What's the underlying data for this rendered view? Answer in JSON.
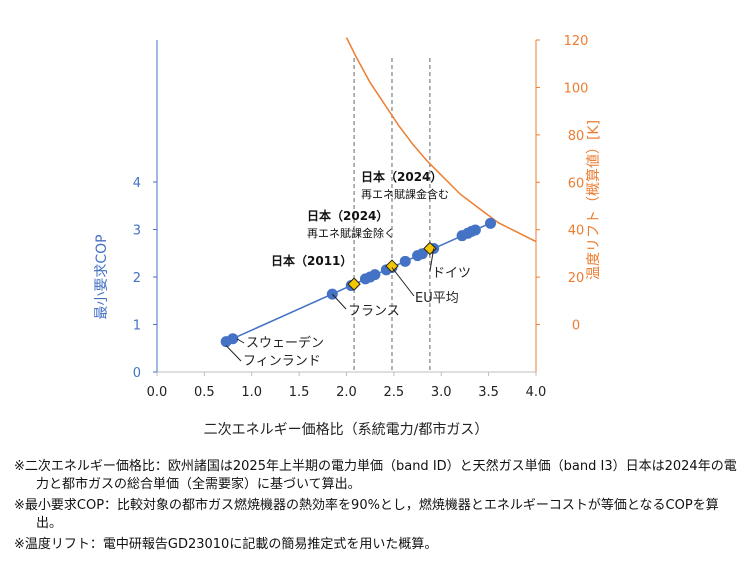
{
  "chart_data": {
    "type": "scatter",
    "xlabel": "二次エネルギー価格比（系統電力/都市ガス）",
    "ylabel": "最小要求COP",
    "y2label": "温度リフト（概算値）[K]",
    "xlim": [
      0.0,
      4.0
    ],
    "ylim": [
      0,
      4
    ],
    "y2lim": [
      -20,
      120
    ],
    "x_ticks": [
      "0.0",
      "0.5",
      "1.0",
      "1.5",
      "2.0",
      "2.5",
      "3.0",
      "3.5",
      "4.0"
    ],
    "y_ticks": [
      "0",
      "1",
      "2",
      "3",
      "4"
    ],
    "y2_ticks": [
      "0",
      "20",
      "40",
      "60",
      "80",
      "100",
      "120"
    ],
    "grid": false,
    "colors": {
      "points": "#4472c4",
      "left_axis": "#4472c4",
      "right_axis": "#ed7d31",
      "curve": "#ed7d31",
      "japan_marker": "#f2c600",
      "dashed": "#7f7f7f"
    },
    "country_points": [
      {
        "x": 0.73,
        "y": 0.64
      },
      {
        "x": 0.8,
        "y": 0.7
      },
      {
        "x": 1.85,
        "y": 1.64
      },
      {
        "x": 2.05,
        "y": 1.82
      },
      {
        "x": 2.2,
        "y": 1.96
      },
      {
        "x": 2.25,
        "y": 2.0
      },
      {
        "x": 2.3,
        "y": 2.05
      },
      {
        "x": 2.42,
        "y": 2.15
      },
      {
        "x": 2.48,
        "y": 2.2
      },
      {
        "x": 2.62,
        "y": 2.33
      },
      {
        "x": 2.75,
        "y": 2.45
      },
      {
        "x": 2.8,
        "y": 2.49
      },
      {
        "x": 2.92,
        "y": 2.6
      },
      {
        "x": 3.22,
        "y": 2.87
      },
      {
        "x": 3.28,
        "y": 2.92
      },
      {
        "x": 3.32,
        "y": 2.96
      },
      {
        "x": 3.36,
        "y": 2.99
      },
      {
        "x": 3.52,
        "y": 3.13
      }
    ],
    "japan_points": [
      {
        "label": "日本（2011）",
        "x": 2.08,
        "y": 1.85
      },
      {
        "label": "日本（2024）",
        "sublabel": "再エネ賦課金除く",
        "x": 2.48,
        "y": 2.23
      },
      {
        "label": "日本（2024）",
        "sublabel": "再エネ賦課金含む",
        "x": 2.88,
        "y": 2.6
      }
    ],
    "dashed_verticals": [
      2.08,
      2.48,
      2.88
    ],
    "temperature_lift_curve": [
      {
        "x": 2.0,
        "y2": 121
      },
      {
        "x": 2.1,
        "y2": 113
      },
      {
        "x": 2.25,
        "y2": 102
      },
      {
        "x": 2.4,
        "y2": 93
      },
      {
        "x": 2.55,
        "y2": 84
      },
      {
        "x": 2.7,
        "y2": 76
      },
      {
        "x": 2.85,
        "y2": 69
      },
      {
        "x": 3.0,
        "y2": 63
      },
      {
        "x": 3.2,
        "y2": 55
      },
      {
        "x": 3.4,
        "y2": 49
      },
      {
        "x": 3.6,
        "y2": 43
      },
      {
        "x": 3.8,
        "y2": 39
      },
      {
        "x": 4.0,
        "y2": 35
      }
    ],
    "annotations": [
      {
        "text": "ドイツ",
        "x": 2.92,
        "y": 2.6
      },
      {
        "text": "EU平均",
        "x": 2.48,
        "y": 2.2
      },
      {
        "text": "フランス",
        "x": 1.85,
        "y": 1.64
      },
      {
        "text": "スウェーデン",
        "x": 0.8,
        "y": 0.7
      },
      {
        "text": "フィンランド",
        "x": 0.73,
        "y": 0.64
      }
    ]
  },
  "notes": [
    "※二次エネルギー価格比：欧州諸国は2025年上半期の電力単価（band ID）と天然ガス単価（band I3）日本は2024年の電力と都市ガスの総合単価（全需要家）に基づいて算出。",
    "※最小要求COP：比較対象の都市ガス燃焼機器の熱効率を90%とし，燃焼機器とエネルギーコストが等価となるCOPを算出。",
    "※温度リフト：電中研報告GD23010に記載の簡易推定式を用いた概算。"
  ]
}
